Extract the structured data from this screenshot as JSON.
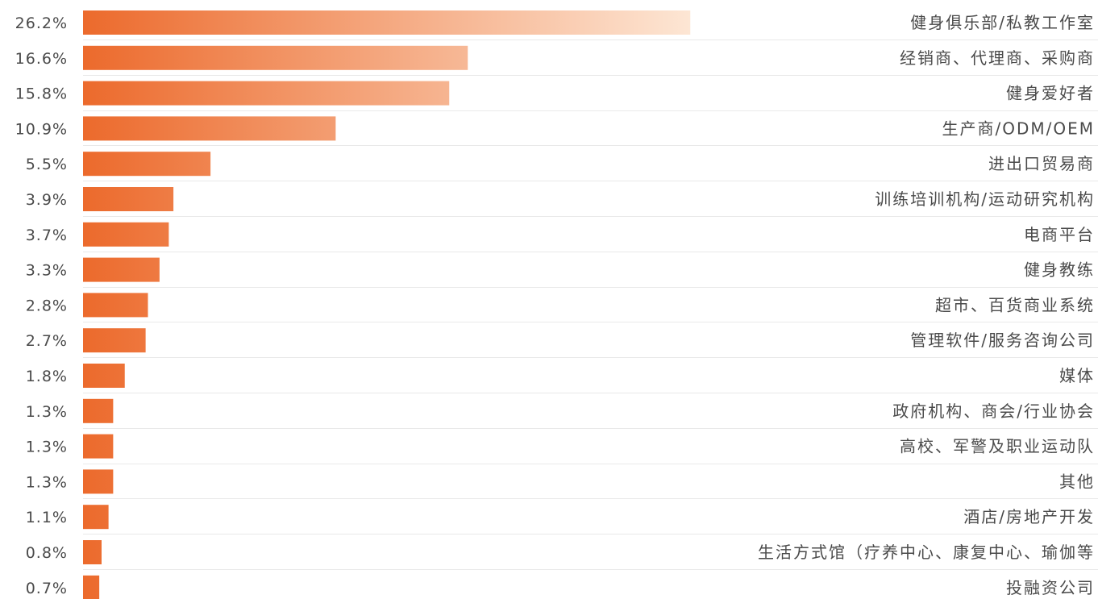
{
  "chart_data": {
    "type": "bar",
    "orientation": "horizontal",
    "categories": [
      "健身俱乐部/私教工作室",
      "经销商、代理商、采购商",
      "健身爱好者",
      "生产商/ODM/OEM",
      "进出口贸易商",
      "训练培训机构/运动研究机构",
      "电商平台",
      "健身教练",
      "超市、百货商业系统",
      "管理软件/服务咨询公司",
      "媒体",
      "政府机构、商会/行业协会",
      "高校、军警及职业运动队",
      "其他",
      "酒店/房地产开发",
      "生活方式馆（疗养中心、康复中心、瑜伽等",
      "投融资公司"
    ],
    "values": [
      26.2,
      16.6,
      15.8,
      10.9,
      5.5,
      3.9,
      3.7,
      3.3,
      2.8,
      2.7,
      1.8,
      1.3,
      1.3,
      1.3,
      1.1,
      0.8,
      0.7
    ],
    "value_labels": [
      "26.2%",
      "16.6%",
      "15.8%",
      "10.9%",
      "5.5%",
      "3.9%",
      "3.7%",
      "3.3%",
      "2.8%",
      "2.7%",
      "1.8%",
      "1.3%",
      "1.3%",
      "1.3%",
      "1.1%",
      "0.8%",
      "0.7%"
    ],
    "unit": "%",
    "colors": {
      "bar_start": "#ec6a2c",
      "bar_end": "#fde6d4"
    },
    "grid": false
  }
}
